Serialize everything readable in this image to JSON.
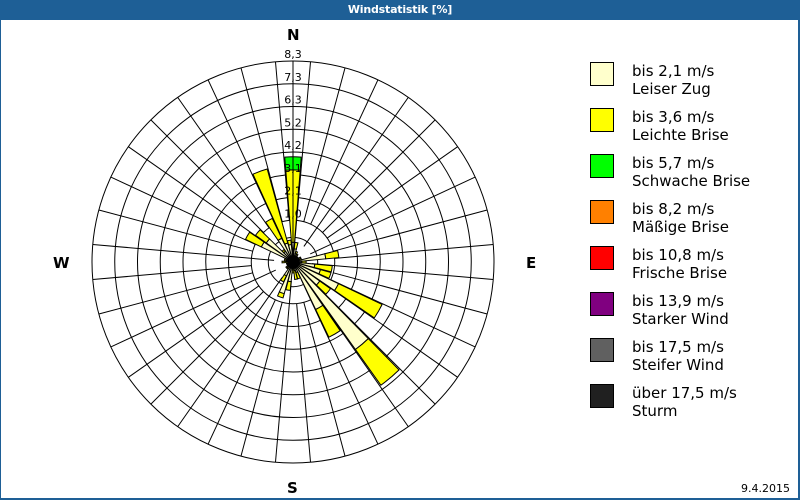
{
  "window": {
    "title": "Windstatistik [%]"
  },
  "footer": {
    "date": "9.4.2015"
  },
  "compass": {
    "n": "N",
    "e": "E",
    "s": "S",
    "w": "W"
  },
  "legend": [
    {
      "range": "bis 2,1 m/s",
      "name": "Leiser Zug",
      "color": "#ffffcc"
    },
    {
      "range": "bis 3,6 m/s",
      "name": "Leichte Brise",
      "color": "#ffff00"
    },
    {
      "range": "bis 5,7 m/s",
      "name": "Schwache Brise",
      "color": "#00ff00"
    },
    {
      "range": "bis 8,2 m/s",
      "name": "Mäßige Brise",
      "color": "#ff8000"
    },
    {
      "range": "bis 10,8 m/s",
      "name": "Frische Brise",
      "color": "#ff0000"
    },
    {
      "range": "bis 13,9 m/s",
      "name": "Starker Wind",
      "color": "#800080"
    },
    {
      "range": "bis 17,5 m/s",
      "name": "Steifer Wind",
      "color": "#606060"
    },
    {
      "range": "über 17,5 m/s",
      "name": "Sturm",
      "color": "#202020"
    }
  ],
  "chart_data": {
    "type": "wind-rose",
    "title": "Windstatistik [%]",
    "ring_labels": [
      "1,0",
      "2,1",
      "3,1",
      "4,2",
      "5,2",
      "6,3",
      "7,3",
      "8,3"
    ],
    "rmax": 8.3,
    "sector_width_deg": 10,
    "series_names": [
      "bis 2,1 m/s",
      "bis 3,6 m/s",
      "bis 5,7 m/s"
    ],
    "sectors": [
      {
        "dir": 0,
        "values": [
          0.9,
          3.3,
          0.6
        ]
      },
      {
        "dir": 10,
        "values": [
          0.6,
          0.3,
          0
        ]
      },
      {
        "dir": 20,
        "values": [
          0.4,
          0.1,
          0
        ]
      },
      {
        "dir": 30,
        "values": [
          0.3,
          0.1,
          0
        ]
      },
      {
        "dir": 40,
        "values": [
          0.2,
          0.1,
          0
        ]
      },
      {
        "dir": 50,
        "values": [
          0.2,
          0.1,
          0
        ]
      },
      {
        "dir": 60,
        "values": [
          0.3,
          0.1,
          0
        ]
      },
      {
        "dir": 70,
        "values": [
          0.3,
          0.1,
          0
        ]
      },
      {
        "dir": 80,
        "values": [
          1.5,
          0.6,
          0
        ]
      },
      {
        "dir": 90,
        "values": [
          0.4,
          0.2,
          0
        ]
      },
      {
        "dir": 100,
        "values": [
          1.0,
          0.8,
          0
        ]
      },
      {
        "dir": 110,
        "values": [
          1.3,
          0.5,
          0
        ]
      },
      {
        "dir": 120,
        "values": [
          2.3,
          2.2,
          0
        ]
      },
      {
        "dir": 130,
        "values": [
          1.5,
          0.6,
          0
        ]
      },
      {
        "dir": 140,
        "values": [
          4.9,
          2.0,
          0
        ]
      },
      {
        "dir": 150,
        "values": [
          2.4,
          1.4,
          0
        ]
      },
      {
        "dir": 160,
        "values": [
          0.5,
          0.3,
          0
        ]
      },
      {
        "dir": 170,
        "values": [
          0.4,
          0.4,
          0
        ]
      },
      {
        "dir": 180,
        "values": [
          0.2,
          0.3,
          0
        ]
      },
      {
        "dir": 190,
        "values": [
          0.9,
          0.4,
          0
        ]
      },
      {
        "dir": 200,
        "values": [
          1.5,
          0.2,
          0
        ]
      },
      {
        "dir": 210,
        "values": [
          0.7,
          0.3,
          0
        ]
      },
      {
        "dir": 220,
        "values": [
          0.3,
          0.1,
          0
        ]
      },
      {
        "dir": 230,
        "values": [
          0.3,
          0.1,
          0
        ]
      },
      {
        "dir": 240,
        "values": [
          0.2,
          0.1,
          0
        ]
      },
      {
        "dir": 250,
        "values": [
          0.2,
          0.1,
          0
        ]
      },
      {
        "dir": 260,
        "values": [
          0.2,
          0.1,
          0
        ]
      },
      {
        "dir": 270,
        "values": [
          0.2,
          0.3,
          0
        ]
      },
      {
        "dir": 280,
        "values": [
          0.3,
          0.1,
          0
        ]
      },
      {
        "dir": 290,
        "values": [
          0.3,
          0.1,
          0
        ]
      },
      {
        "dir": 300,
        "values": [
          1.6,
          0.8,
          0
        ]
      },
      {
        "dir": 310,
        "values": [
          1.5,
          0.6,
          0
        ]
      },
      {
        "dir": 320,
        "values": [
          0.6,
          0.1,
          0
        ]
      },
      {
        "dir": 330,
        "values": [
          1.2,
          1.0,
          0
        ]
      },
      {
        "dir": 340,
        "values": [
          0.9,
          3.5,
          0
        ]
      },
      {
        "dir": 350,
        "values": [
          0.8,
          0.2,
          0
        ]
      }
    ]
  }
}
